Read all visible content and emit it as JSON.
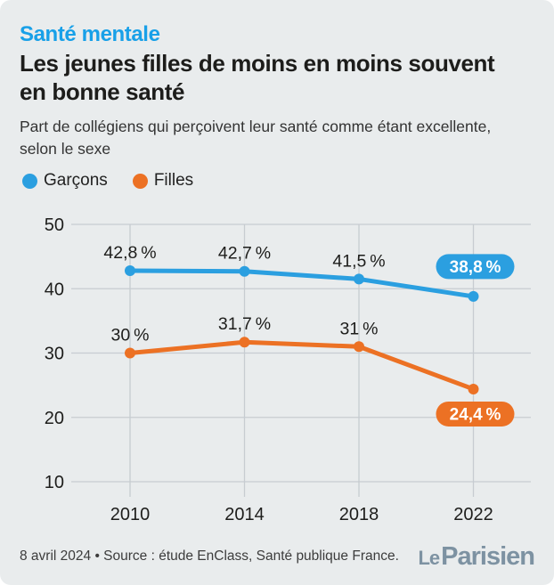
{
  "header": {
    "kicker": "Santé mentale",
    "title": "Les jeunes filles de moins en moins souvent\nen bonne santé",
    "subtitle": "Part de collégiens qui perçoivent leur santé comme étant excellente,\nselon le sexe"
  },
  "legend": {
    "items": [
      {
        "label": "Garçons",
        "color": "#2b9fe0"
      },
      {
        "label": "Filles",
        "color": "#ec7124"
      }
    ]
  },
  "chart_data": {
    "type": "line",
    "title": "Part de collégiens qui perçoivent leur santé comme étant excellente, selon le sexe",
    "x_categories": [
      "2010",
      "2014",
      "2018",
      "2022"
    ],
    "y_ticks": [
      50,
      40,
      30,
      20,
      10
    ],
    "ylim": [
      10,
      50
    ],
    "grid": true,
    "legend_position": "top-left",
    "series": [
      {
        "name": "Garçons",
        "color": "#2b9fe0",
        "values": [
          42.8,
          42.7,
          41.5,
          38.8
        ],
        "point_labels": [
          "42,8 %",
          "42,7 %",
          "41,5 %"
        ],
        "end_badge": "38,8 %",
        "badge_position": "above"
      },
      {
        "name": "Filles",
        "color": "#ec7124",
        "values": [
          30,
          31.7,
          31,
          24.4
        ],
        "point_labels": [
          "30 %",
          "31,7 %",
          "31 %"
        ],
        "end_badge": "24,4 %",
        "badge_position": "below"
      }
    ]
  },
  "footer": {
    "source": "8 avril 2024 • Source : étude EnClass, Santé publique France.",
    "logo_le": "Le",
    "logo_parisien": "Parisien"
  },
  "colors": {
    "background": "#e9eced",
    "accent_blue": "#18a0e8",
    "grid": "#c7ccd1",
    "text_dark": "#1d1d1b",
    "text_muted": "#3c3c3c",
    "logo": "#7d92a2",
    "badge_text": "#ffffff"
  }
}
